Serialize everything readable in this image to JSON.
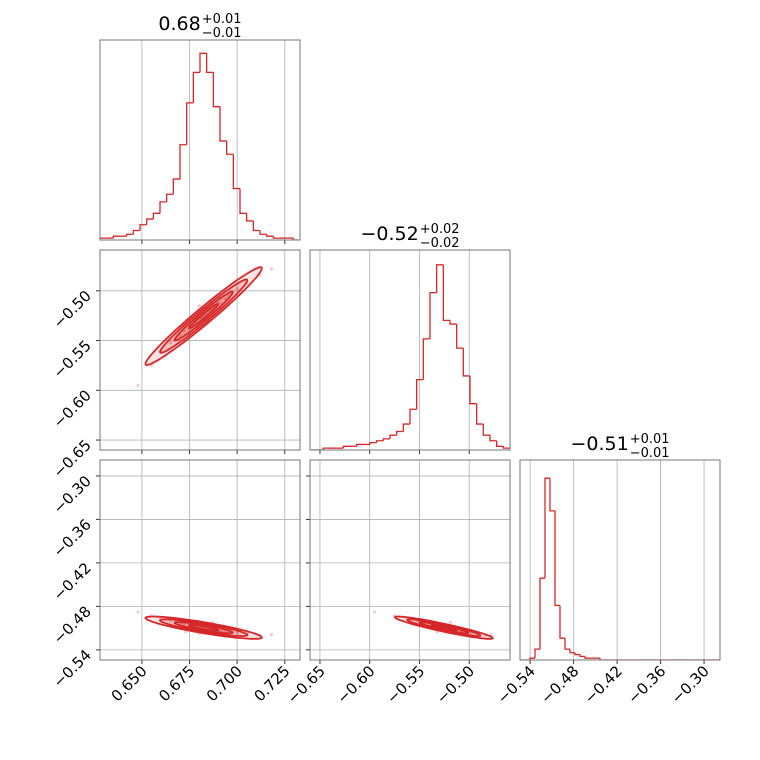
{
  "chart_data": {
    "type": "corner",
    "color": "#d62728",
    "grid": true,
    "parameters": [
      {
        "title": {
          "value": "0.68",
          "upper": "+0.01",
          "lower": "−0.01"
        },
        "lim": [
          0.628,
          0.733
        ],
        "ticks": [
          {
            "value": 0.65,
            "label": "0.650"
          },
          {
            "value": 0.675,
            "label": "0.675"
          },
          {
            "value": 0.7,
            "label": "0.700"
          },
          {
            "value": 0.725,
            "label": "0.725"
          }
        ],
        "bins": [
          0.628,
          0.6315,
          0.635,
          0.6385,
          0.642,
          0.6455,
          0.649,
          0.6525,
          0.656,
          0.6595,
          0.663,
          0.6665,
          0.67,
          0.6735,
          0.677,
          0.6805,
          0.684,
          0.6875,
          0.691,
          0.6945,
          0.698,
          0.7015,
          0.705,
          0.7085,
          0.712,
          0.7155,
          0.719,
          0.7225,
          0.726,
          0.7295,
          0.733
        ],
        "counts": [
          1,
          1,
          2,
          2,
          3,
          5,
          8,
          11,
          14,
          20,
          24,
          32,
          50,
          72,
          88,
          98,
          88,
          70,
          52,
          45,
          27,
          14,
          10,
          5,
          3,
          2,
          1,
          1,
          1,
          0
        ],
        "hist_ylim": [
          0,
          105
        ]
      },
      {
        "title": {
          "value": "−0.52",
          "upper": "+0.02",
          "lower": "−0.02"
        },
        "lim": [
          -0.66,
          -0.459
        ],
        "ticks": [
          {
            "value": -0.65,
            "label": "−0.65"
          },
          {
            "value": -0.6,
            "label": "−0.60"
          },
          {
            "value": -0.55,
            "label": "−0.55"
          },
          {
            "value": -0.5,
            "label": "−0.50"
          }
        ],
        "bins": [
          -0.66,
          -0.6533,
          -0.6466,
          -0.6399,
          -0.6332,
          -0.6265,
          -0.6198,
          -0.6131,
          -0.6064,
          -0.5997,
          -0.593,
          -0.5863,
          -0.5796,
          -0.5729,
          -0.5662,
          -0.5595,
          -0.5528,
          -0.5461,
          -0.5394,
          -0.5327,
          -0.526,
          -0.5193,
          -0.5126,
          -0.5059,
          -0.4992,
          -0.4925,
          -0.4858,
          -0.4791,
          -0.4724,
          -0.4657,
          -0.459
        ],
        "counts": [
          0,
          0,
          1,
          1,
          1,
          2,
          2,
          3,
          3,
          4,
          5,
          6,
          8,
          10,
          14,
          22,
          38,
          60,
          85,
          100,
          70,
          68,
          55,
          40,
          25,
          14,
          8,
          5,
          2,
          1
        ],
        "hist_ylim": [
          0,
          108
        ]
      },
      {
        "title": {
          "value": "−0.51",
          "upper": "+0.01",
          "lower": "−0.01"
        },
        "lim": [
          -0.554,
          -0.278
        ],
        "ticks": [
          {
            "value": -0.54,
            "label": "−0.54"
          },
          {
            "value": -0.48,
            "label": "−0.48"
          },
          {
            "value": -0.42,
            "label": "−0.42"
          },
          {
            "value": -0.36,
            "label": "−0.36"
          },
          {
            "value": -0.3,
            "label": "−0.30"
          }
        ],
        "bins": [
          -0.554,
          -0.5471,
          -0.5402,
          -0.5333,
          -0.5264,
          -0.5195,
          -0.5126,
          -0.5057,
          -0.4988,
          -0.4919,
          -0.485,
          -0.4781,
          -0.4712,
          -0.4643,
          -0.4574,
          -0.4505,
          -0.4436,
          -0.4367,
          -0.4298,
          -0.4229,
          -0.416,
          -0.4091,
          -0.4022,
          -0.3953,
          -0.3884,
          -0.3815,
          -0.3746,
          -0.3677,
          -0.3608,
          -0.3539,
          -0.347,
          -0.3401,
          -0.3332,
          -0.3263,
          -0.3194,
          -0.3125,
          -0.3056,
          -0.2987,
          -0.2918,
          -0.2849,
          -0.278
        ],
        "counts": [
          0,
          0,
          1,
          6,
          45,
          100,
          82,
          30,
          12,
          6,
          4,
          3,
          2,
          1,
          1,
          1,
          0,
          0,
          0,
          0,
          0,
          0,
          0,
          0,
          0,
          0,
          0,
          0,
          0,
          0,
          0,
          0,
          0,
          0,
          0,
          0,
          0,
          0,
          0,
          0
        ],
        "hist_ylim": [
          0,
          110
        ]
      }
    ],
    "samples": [
      [
        0.683,
        0.672,
        0.694,
        0.678,
        0.688,
        0.665,
        0.7,
        0.681,
        0.69,
        0.675,
        0.686,
        0.66,
        0.705,
        0.679,
        0.684,
        0.67,
        0.696,
        0.682,
        0.692,
        0.676,
        0.655,
        0.712,
        0.687,
        0.673,
        0.685,
        0.68,
        0.648,
        0.718,
        0.668,
        0.691
      ],
      [
        -0.523,
        -0.54,
        -0.508,
        -0.531,
        -0.515,
        -0.552,
        -0.498,
        -0.527,
        -0.512,
        -0.536,
        -0.52,
        -0.56,
        -0.492,
        -0.528,
        -0.518,
        -0.545,
        -0.505,
        -0.525,
        -0.513,
        -0.533,
        -0.575,
        -0.484,
        -0.519,
        -0.532,
        -0.53,
        -0.515,
        -0.595,
        -0.478,
        -0.548,
        -0.507
      ],
      [
        -0.512,
        -0.505,
        -0.515,
        -0.509,
        -0.513,
        -0.5,
        -0.517,
        -0.511,
        -0.514,
        -0.507,
        -0.512,
        -0.497,
        -0.518,
        -0.51,
        -0.513,
        -0.504,
        -0.516,
        -0.511,
        -0.515,
        -0.508,
        -0.493,
        -0.52,
        -0.502,
        -0.515,
        -0.506,
        -0.517,
        -0.488,
        -0.519,
        -0.501,
        -0.514
      ]
    ]
  }
}
